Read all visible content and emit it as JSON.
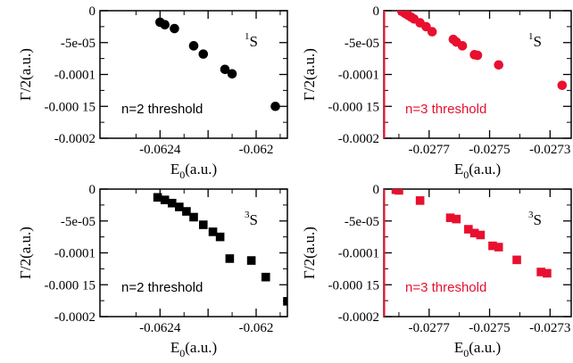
{
  "chart_data": [
    {
      "type": "scatter",
      "panel": "top-left",
      "xlabel": {
        "main": "E",
        "sub": "0",
        "unit": "(a.u.)"
      },
      "ylabel": "Γ/2(a.u.)",
      "xlim": [
        -0.06265,
        -0.06187
      ],
      "ylim": [
        -0.0002,
        0
      ],
      "xticks": [
        -0.0624,
        -0.0622,
        -0.062
      ],
      "xtick_labels": [
        "-0.0624",
        "",
        "-0.062"
      ],
      "yticks": [
        0,
        -5e-05,
        -0.0001,
        -0.00015,
        -0.0002
      ],
      "ytick_labels": [
        "0",
        "-5e-05",
        "-0.0001",
        "-0.000 15",
        "-0.0002"
      ],
      "annotation": "n=2 threshold",
      "state_label": {
        "base": "S",
        "sup": "1"
      },
      "marker": "circle",
      "color": "#000000",
      "series": [
        {
          "x": [
            -0.0624,
            -0.06238,
            -0.06234,
            -0.06226,
            -0.06222,
            -0.06213,
            -0.0621,
            -0.06192
          ],
          "y": [
            -1.8e-05,
            -2.2e-05,
            -2.8e-05,
            -5.5e-05,
            -6.8e-05,
            -9.2e-05,
            -9.9e-05,
            -0.00015
          ]
        }
      ]
    },
    {
      "type": "scatter",
      "panel": "top-right",
      "xlabel": {
        "main": "E",
        "sub": "0",
        "unit": "(a.u.)"
      },
      "ylabel": "Γ/2(a.u.)",
      "xlim": [
        -0.02785,
        -0.02723
      ],
      "ylim": [
        -0.0002,
        0
      ],
      "xticks": [
        -0.0277,
        -0.0275,
        -0.0273
      ],
      "xtick_labels": [
        "-0.0277",
        "-0.0275",
        "-0.0273"
      ],
      "yticks": [
        0,
        -5e-05,
        -0.0001,
        -0.00015,
        -0.0002
      ],
      "ytick_labels": [
        "0",
        "-5e-05",
        "-0.0001",
        "-0.000 15",
        "-0.0002"
      ],
      "annotation": "n=3 threshold",
      "state_label": {
        "base": "S",
        "sup": "1"
      },
      "marker": "circle",
      "color": "#e8102e",
      "series": [
        {
          "x": [
            -0.02779,
            -0.02778,
            -0.02777,
            -0.02776,
            -0.02775,
            -0.02773,
            -0.02771,
            -0.02769,
            -0.02762,
            -0.02761,
            -0.02759,
            -0.02755,
            -0.02754,
            -0.02747,
            -0.02726
          ],
          "y": [
            -1e-06,
            -4e-06,
            -7e-06,
            -1e-05,
            -1.3e-05,
            -1.9e-05,
            -2.5e-05,
            -3.3e-05,
            -4.5e-05,
            -4.9e-05,
            -5.5e-05,
            -6.9e-05,
            -7e-05,
            -8.5e-05,
            -0.000117
          ]
        }
      ]
    },
    {
      "type": "scatter",
      "panel": "bottom-left",
      "xlabel": {
        "main": "E",
        "sub": "0",
        "unit": "(a.u.)"
      },
      "ylabel": "Γ/2(a.u.)",
      "xlim": [
        -0.06265,
        -0.06187
      ],
      "ylim": [
        -0.0002,
        0
      ],
      "xticks": [
        -0.0624,
        -0.0622,
        -0.062
      ],
      "xtick_labels": [
        "-0.0624",
        "",
        "-0.062"
      ],
      "yticks": [
        0,
        -5e-05,
        -0.0001,
        -0.00015,
        -0.0002
      ],
      "ytick_labels": [
        "0",
        "-5e-05",
        "-0.0001",
        "-0.000 15",
        "-0.0002"
      ],
      "annotation": "n=2 threshold",
      "state_label": {
        "base": "S",
        "sup": "3"
      },
      "marker": "square",
      "color": "#000000",
      "series": [
        {
          "x": [
            -0.06241,
            -0.06238,
            -0.06235,
            -0.06232,
            -0.06229,
            -0.06226,
            -0.06222,
            -0.06218,
            -0.06215,
            -0.06211,
            -0.06202,
            -0.06196,
            -0.06187
          ],
          "y": [
            -1.3e-05,
            -1.7e-05,
            -2.2e-05,
            -2.8e-05,
            -3.5e-05,
            -4.4e-05,
            -5.6e-05,
            -6.7e-05,
            -7.5e-05,
            -0.000109,
            -0.000112,
            -0.000138,
            -0.000176
          ]
        }
      ]
    },
    {
      "type": "scatter",
      "panel": "bottom-right",
      "xlabel": {
        "main": "E",
        "sub": "0",
        "unit": "(a.u.)"
      },
      "ylabel": "Γ/2(a.u.)",
      "xlim": [
        -0.02785,
        -0.02723
      ],
      "ylim": [
        -0.0002,
        0
      ],
      "xticks": [
        -0.0277,
        -0.0275,
        -0.0273
      ],
      "xtick_labels": [
        "-0.0277",
        "-0.0275",
        "-0.0273"
      ],
      "yticks": [
        0,
        -5e-05,
        -0.0001,
        -0.00015,
        -0.0002
      ],
      "ytick_labels": [
        "0",
        "-5e-05",
        "-0.0001",
        "-0.000 15",
        "-0.0002"
      ],
      "annotation": "n=3 threshold",
      "state_label": {
        "base": "S",
        "sup": "3"
      },
      "marker": "square",
      "color": "#e8102e",
      "series": [
        {
          "x": [
            -0.02781,
            -0.0278,
            -0.02773,
            -0.02763,
            -0.02761,
            -0.02757,
            -0.02755,
            -0.02753,
            -0.02749,
            -0.02747,
            -0.02741,
            -0.02733,
            -0.02731
          ],
          "y": [
            -1e-06,
            -2e-06,
            -1.8e-05,
            -4.5e-05,
            -4.7e-05,
            -6.3e-05,
            -6.9e-05,
            -7.2e-05,
            -8.9e-05,
            -9.1e-05,
            -0.000111,
            -0.00013,
            -0.000132
          ]
        }
      ]
    }
  ]
}
